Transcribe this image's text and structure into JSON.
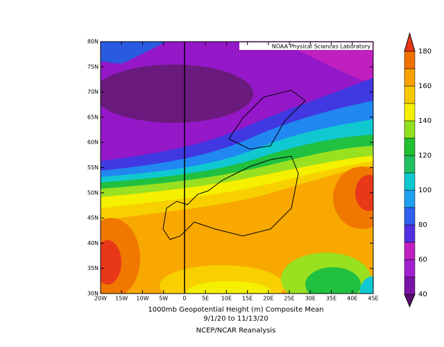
{
  "header": {
    "credit": "NOAA Physical Sciences Laboratory"
  },
  "map": {
    "lat_labels": [
      "80N",
      "75N",
      "70N",
      "65N",
      "60N",
      "55N",
      "50N",
      "45N",
      "40N",
      "35N",
      "30N"
    ],
    "lon_labels": [
      "20W",
      "15W",
      "10W",
      "5W",
      "0",
      "5E",
      "10E",
      "15E",
      "20E",
      "25E",
      "30E",
      "35E",
      "40E",
      "45E"
    ]
  },
  "colorbar": {
    "ticks": [
      180,
      160,
      140,
      120,
      100,
      80,
      60,
      40
    ]
  },
  "caption": {
    "title": "1000mb Geopotential Height (m) Composite Mean",
    "dates": "9/1/20  to 11/13/20",
    "source": "NCEP/NCAR Reanalysis"
  }
}
